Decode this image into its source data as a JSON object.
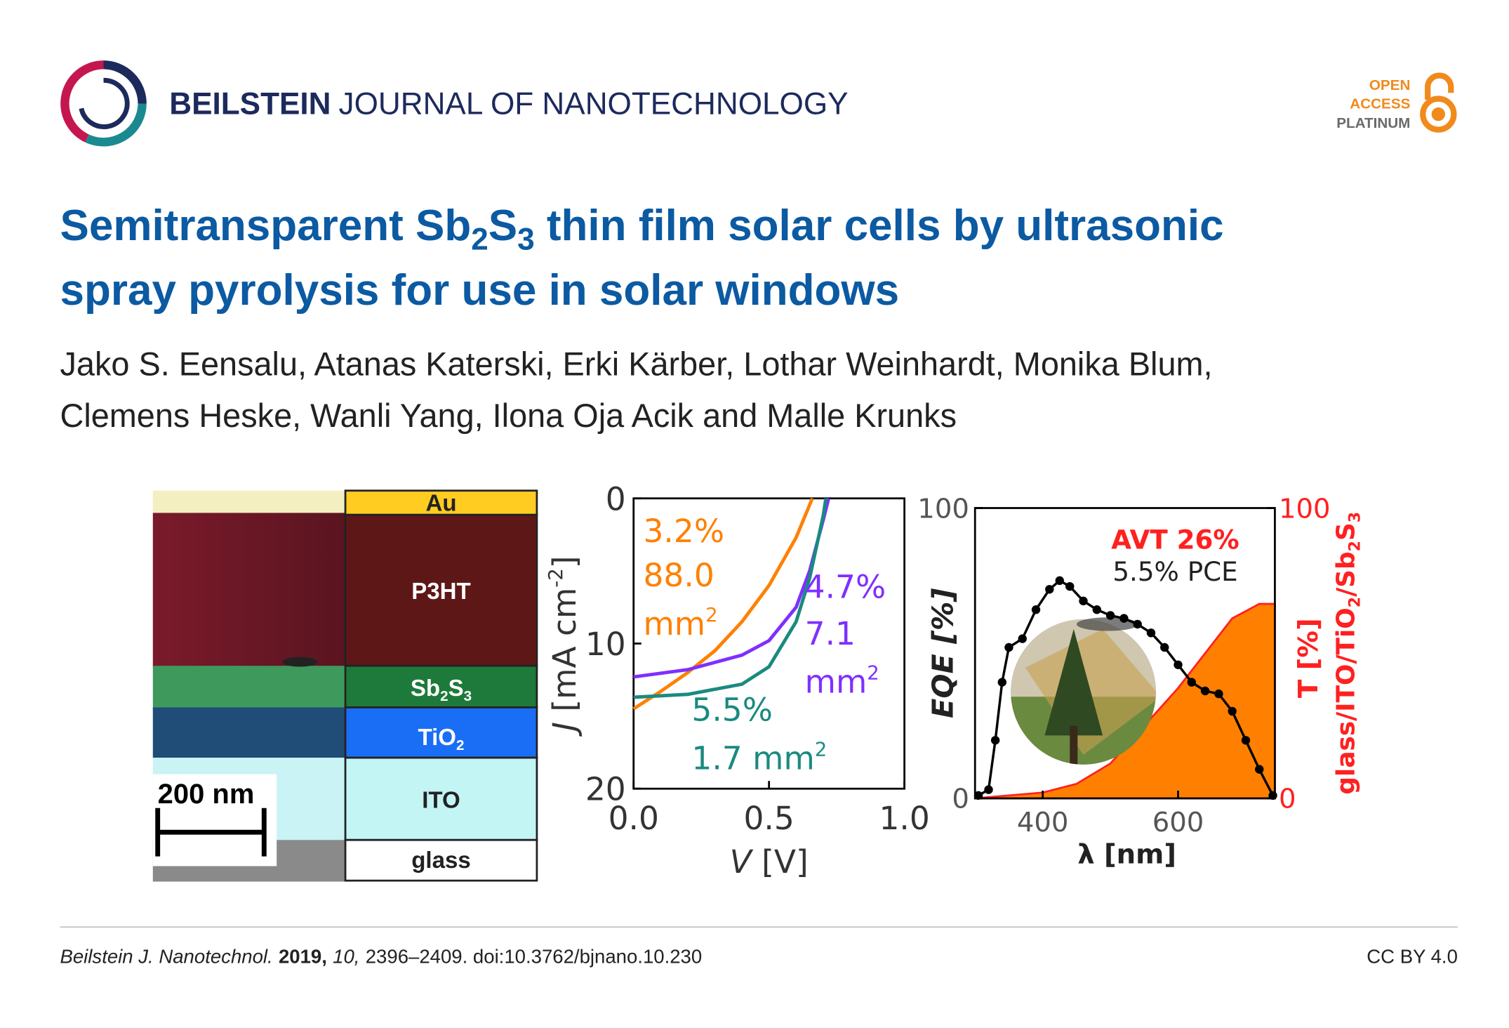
{
  "header": {
    "journal_bold": "BEILSTEIN",
    "journal_rest": "JOURNAL OF NANOTECHNOLOGY",
    "badge": [
      "OPEN",
      "ACCESS",
      "PLATINUM"
    ]
  },
  "article": {
    "title": [
      "Semitransparent Sb",
      "2",
      "S",
      "3",
      " thin film solar cells by ultrasonic",
      "spray pyrolysis for use in solar windows"
    ],
    "authors": [
      "Jako S. Eensalu, Atanas Katerski, Erki Kärber, Lothar Weinhardt, Monika Blum,",
      "Clemens Heske, Wanli Yang, Ilona Oja Acik and Malle Krunks"
    ]
  },
  "figure": {
    "layers": [
      [
        "Au"
      ],
      [
        "P3HT"
      ],
      [
        "Sb",
        "2",
        "S",
        "3"
      ],
      [
        "TiO",
        "2"
      ],
      [
        "ITO"
      ],
      [
        "glass"
      ]
    ],
    "scale_bar": "200 nm",
    "jv": {
      "type": "line",
      "x_label": [
        "V",
        " [V]"
      ],
      "y_label": [
        "J",
        " [mA cm",
        "-2",
        "]"
      ],
      "xlim": [
        0,
        1.0
      ],
      "ylim": [
        0,
        20
      ],
      "xticks": [
        {
          "value": 0,
          "label": "0.0"
        },
        0.5,
        {
          "value": 1,
          "label": "1.0"
        }
      ],
      "yticks": [
        0,
        10,
        20
      ],
      "series": [
        {
          "color": "#ff8000",
          "x": [
            0,
            0.1,
            0.2,
            0.3,
            0.4,
            0.5,
            0.6,
            0.66
          ],
          "values": [
            14.5,
            13.3,
            12.0,
            10.5,
            8.5,
            6.0,
            2.7,
            0
          ]
        },
        {
          "color": "#7f2fff",
          "x": [
            0,
            0.2,
            0.4,
            0.5,
            0.6,
            0.65,
            0.7,
            0.72
          ],
          "values": [
            12.3,
            11.8,
            10.8,
            9.8,
            7.5,
            5.0,
            1.5,
            0
          ]
        },
        {
          "color": "#1a8a80",
          "x": [
            0,
            0.2,
            0.4,
            0.5,
            0.6,
            0.65,
            0.7,
            0.71
          ],
          "values": [
            13.7,
            13.5,
            12.8,
            11.6,
            8.5,
            5.5,
            1.2,
            0
          ]
        }
      ],
      "annotations": [
        [
          "3.2%",
          "88.0",
          "mm",
          "2"
        ],
        [
          "4.7%",
          "7.1",
          "mm",
          "2"
        ],
        [
          "5.5%",
          "1.7 mm",
          "2"
        ]
      ]
    },
    "eqe": {
      "type": "line",
      "x_label": "λ [nm]",
      "y_label": "EQE [%]",
      "y2_label": [
        "T [%]",
        "glass/ITO/TiO",
        "2",
        "/Sb",
        "2",
        "S",
        "3"
      ],
      "xlim": [
        300,
        743
      ],
      "ylim": [
        0,
        100
      ],
      "y2lim": [
        0,
        100
      ],
      "xticks": [
        400,
        600
      ],
      "yticks": [
        0,
        100
      ],
      "y2ticks": [
        0,
        100
      ],
      "annotations": [
        "AVT 26%",
        "5.5% PCE"
      ],
      "series": [
        {
          "color": "#000000",
          "x": [
            305,
            320,
            330,
            340,
            350,
            370,
            390,
            410,
            425,
            440,
            460,
            480,
            500,
            520,
            540,
            560,
            580,
            600,
            620,
            640,
            660,
            680,
            700,
            720,
            740
          ],
          "values": [
            1,
            3,
            20,
            40,
            52,
            55,
            65,
            72,
            75,
            73,
            68,
            65,
            63,
            62,
            60,
            57,
            52,
            46,
            40,
            37,
            36,
            30,
            20,
            10,
            1
          ]
        },
        {
          "color": "#ff8000",
          "axis": "y2",
          "x": [
            300,
            400,
            450,
            500,
            550,
            600,
            640,
            680,
            720,
            743
          ],
          "values": [
            0,
            2,
            5,
            12,
            25,
            38,
            50,
            62,
            67,
            67
          ]
        }
      ]
    }
  },
  "footer": {
    "journal": "Beilstein J. Nanotechnol.",
    "year": "2019,",
    "volume": "10,",
    "rest": "2396–2409. doi:10.3762/bjnano.10.230",
    "license": "CC BY 4.0"
  }
}
